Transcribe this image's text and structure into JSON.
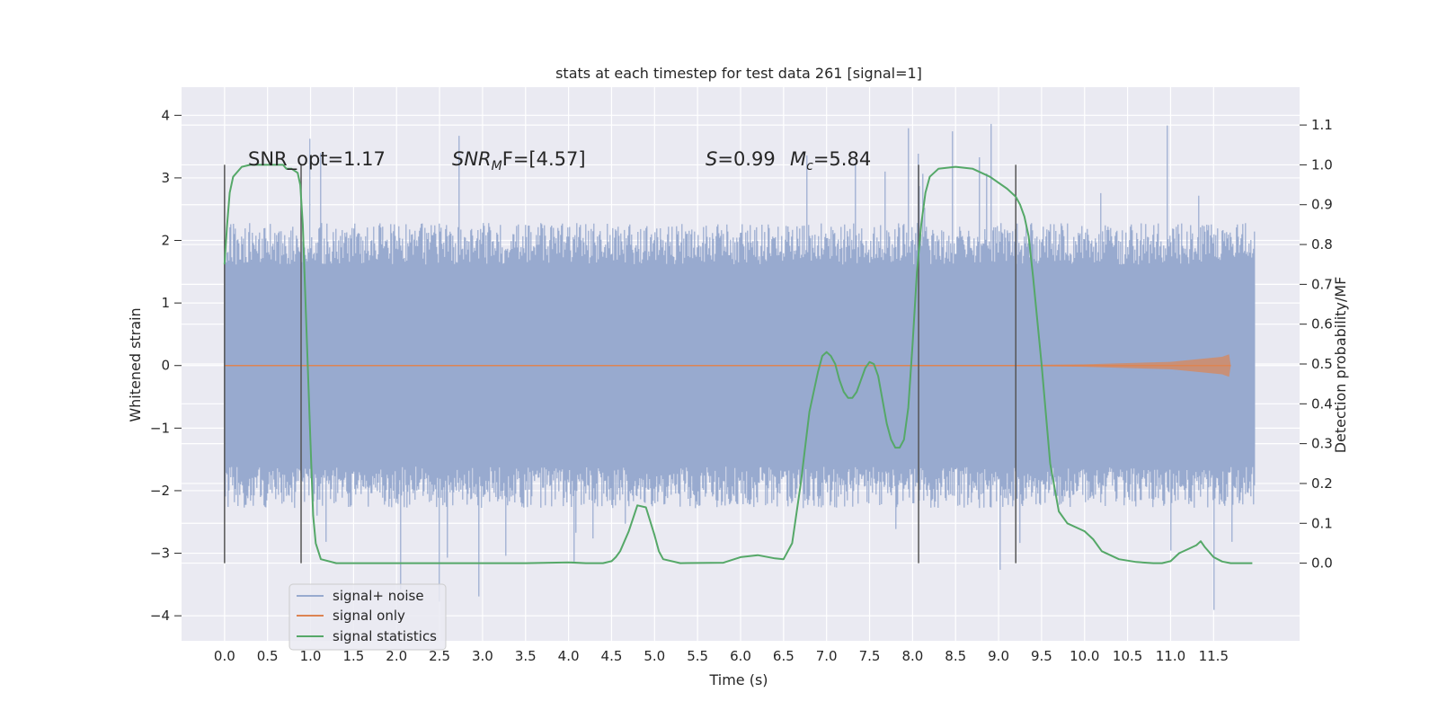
{
  "chart_data": {
    "type": "line",
    "title": "stats at each timestep for test data 261 [signal=1]",
    "xlabel": "Time (s)",
    "ylabel_left": "Whitened strain",
    "ylabel_right": "Detection probability/MF",
    "xlim": [
      -0.5,
      12.5
    ],
    "ylim_left": [
      -4.4,
      4.45
    ],
    "ylim_right": [
      -0.195,
      1.195
    ],
    "x_ticks": [
      0.0,
      0.5,
      1.0,
      1.5,
      2.0,
      2.5,
      3.0,
      3.5,
      4.0,
      4.5,
      5.0,
      5.5,
      6.0,
      6.5,
      7.0,
      7.5,
      8.0,
      8.5,
      9.0,
      9.5,
      10.0,
      10.5,
      11.0,
      11.5
    ],
    "x_tick_labels": [
      "0.0",
      "0.5",
      "1.0",
      "1.5",
      "2.0",
      "2.5",
      "3.0",
      "3.5",
      "4.0",
      "4.5",
      "5.0",
      "5.5",
      "6.0",
      "6.5",
      "7.0",
      "7.5",
      "8.0",
      "8.5",
      "9.0",
      "9.5",
      "10.0",
      "10.5",
      "11.0",
      "11.5"
    ],
    "y_left_ticks": [
      4,
      3,
      2,
      1,
      0,
      -1,
      -2,
      -3,
      -4
    ],
    "y_left_tick_labels": [
      "4",
      "3",
      "2",
      "1",
      "0",
      "−1",
      "−2",
      "−3",
      "−4"
    ],
    "y_right_ticks": [
      1.1,
      1.0,
      0.9,
      0.8,
      0.7,
      0.6,
      0.5,
      0.4,
      0.3,
      0.2,
      0.1,
      0.0
    ],
    "y_right_tick_labels": [
      "1.1",
      "1.0",
      "0.9",
      "0.8",
      "0.7",
      "0.6",
      "0.5",
      "0.4",
      "0.3",
      "0.2",
      "0.1",
      "0.0"
    ],
    "grid": true,
    "legend_position": "lower-left",
    "annotations": {
      "snr_opt": "SNR_opt=1.17",
      "snr_mf_main": "SNR",
      "snr_mf_sub": "M",
      "snr_mf_rest": "F=[4.57]",
      "s_main": "S",
      "s_rest": "=0.99",
      "mc_main": "M",
      "mc_sub": "c",
      "mc_rest": "=5.84"
    },
    "vertical_markers": [
      0.0,
      0.89,
      8.07,
      9.2
    ],
    "colors": {
      "background": "#eaeaf2",
      "noise": "#98aacf",
      "signal": "#dd8452",
      "statistics": "#55a868",
      "markers": "#555555"
    },
    "series": [
      {
        "name": "signal+ noise",
        "kind": "noise-band",
        "x_range": [
          0.0,
          11.98
        ],
        "dense_band": [
          -1.3,
          1.3
        ],
        "typical_peaks": [
          -2.2,
          2.2
        ],
        "max": 4.1,
        "min": -4.0
      },
      {
        "name": "signal only",
        "kind": "chirp",
        "x": [
          0.0,
          9.0,
          10.0,
          11.0,
          11.6,
          11.68,
          11.7
        ],
        "amplitude": [
          0.0,
          0.005,
          0.02,
          0.06,
          0.14,
          0.18,
          0.0
        ]
      },
      {
        "name": "signal statistics",
        "kind": "line",
        "axis": "right",
        "x": [
          0.0,
          0.03,
          0.06,
          0.1,
          0.2,
          0.3,
          0.4,
          0.5,
          0.6,
          0.68,
          0.72,
          0.78,
          0.85,
          0.88,
          0.91,
          0.95,
          1.0,
          1.03,
          1.06,
          1.12,
          1.3,
          1.6,
          2.0,
          3.0,
          3.5,
          4.0,
          4.2,
          4.4,
          4.5,
          4.55,
          4.6,
          4.7,
          4.8,
          4.9,
          5.0,
          5.05,
          5.1,
          5.3,
          5.8,
          6.0,
          6.2,
          6.4,
          6.5,
          6.6,
          6.7,
          6.8,
          6.9,
          6.95,
          7.0,
          7.05,
          7.1,
          7.15,
          7.2,
          7.25,
          7.3,
          7.35,
          7.4,
          7.45,
          7.5,
          7.55,
          7.6,
          7.65,
          7.7,
          7.75,
          7.8,
          7.85,
          7.9,
          7.95,
          8.0,
          8.05,
          8.1,
          8.15,
          8.2,
          8.3,
          8.5,
          8.7,
          8.9,
          9.1,
          9.2,
          9.25,
          9.3,
          9.35,
          9.4,
          9.5,
          9.6,
          9.7,
          9.8,
          10.0,
          10.1,
          10.2,
          10.4,
          10.6,
          10.8,
          10.9,
          11.0,
          11.1,
          11.2,
          11.3,
          11.35,
          11.4,
          11.5,
          11.6,
          11.7,
          11.9,
          11.95
        ],
        "values": [
          0.75,
          0.85,
          0.93,
          0.97,
          0.995,
          1.0,
          1.0,
          1.0,
          1.0,
          1.0,
          0.99,
          0.99,
          0.98,
          0.95,
          0.85,
          0.6,
          0.3,
          0.12,
          0.05,
          0.01,
          0.0,
          0.0,
          0.0,
          0.0,
          0.0,
          0.002,
          0.0,
          0.0,
          0.005,
          0.015,
          0.03,
          0.08,
          0.145,
          0.14,
          0.07,
          0.03,
          0.01,
          0.0,
          0.001,
          0.015,
          0.02,
          0.012,
          0.01,
          0.05,
          0.2,
          0.38,
          0.48,
          0.52,
          0.53,
          0.52,
          0.5,
          0.46,
          0.43,
          0.415,
          0.415,
          0.43,
          0.46,
          0.49,
          0.505,
          0.5,
          0.47,
          0.41,
          0.35,
          0.31,
          0.29,
          0.29,
          0.31,
          0.39,
          0.55,
          0.73,
          0.85,
          0.93,
          0.97,
          0.99,
          0.995,
          0.99,
          0.97,
          0.94,
          0.92,
          0.9,
          0.87,
          0.82,
          0.72,
          0.5,
          0.25,
          0.13,
          0.1,
          0.08,
          0.06,
          0.03,
          0.01,
          0.003,
          0.0,
          0.0,
          0.005,
          0.025,
          0.035,
          0.045,
          0.055,
          0.04,
          0.015,
          0.004,
          0.0,
          0.0,
          0.0
        ]
      }
    ]
  }
}
